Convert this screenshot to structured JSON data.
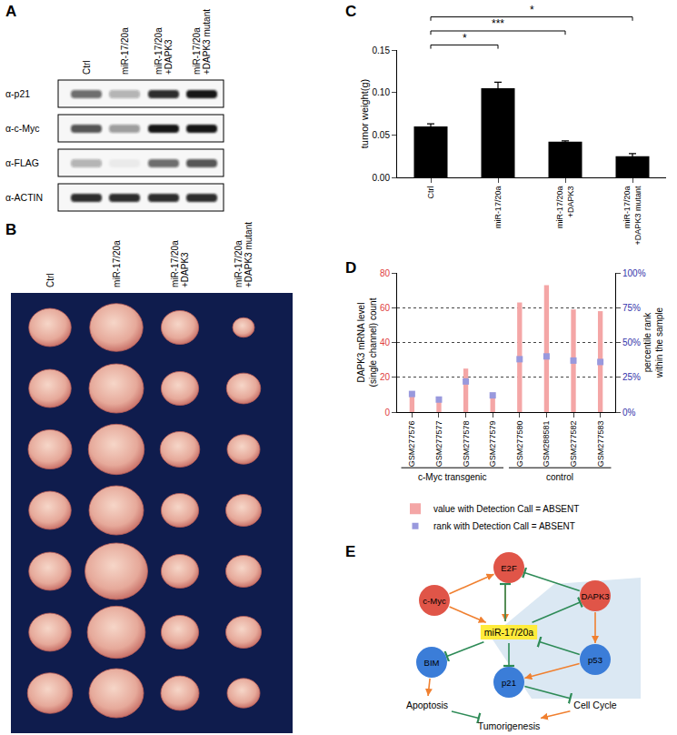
{
  "panel_labels": [
    "A",
    "B",
    "C",
    "D",
    "E"
  ],
  "blot": {
    "lanes": [
      "Ctrl",
      "miR-17/20a",
      "miR-17/20a +DAPK3",
      "miR-17/20a +DAPK3 mutant"
    ],
    "rows": [
      {
        "label": "α-p21",
        "intensity": [
          0.6,
          0.3,
          0.9,
          1.0
        ]
      },
      {
        "label": "α-c-Myc",
        "intensity": [
          0.7,
          0.4,
          1.0,
          1.0
        ]
      },
      {
        "label": "α-FLAG",
        "intensity": [
          0.3,
          0.05,
          0.6,
          0.7
        ]
      },
      {
        "label": "α-ACTIN",
        "intensity": [
          0.9,
          0.9,
          0.9,
          0.9
        ]
      }
    ]
  },
  "photos": {
    "groups": [
      {
        "label": "Ctrl",
        "relative_size": [
          0.62,
          0.62,
          0.64,
          0.62,
          0.62,
          0.62,
          0.66
        ]
      },
      {
        "label": "miR-17/20a",
        "relative_size": [
          0.78,
          0.8,
          0.82,
          0.8,
          0.92,
          0.85,
          0.8
        ]
      },
      {
        "label": "miR-17/20a +DAPK3",
        "relative_size": [
          0.55,
          0.55,
          0.58,
          0.55,
          0.55,
          0.55,
          0.56
        ]
      },
      {
        "label": "miR-17/20a +DAPK3 mutant",
        "relative_size": [
          0.32,
          0.5,
          0.48,
          0.52,
          0.52,
          0.52,
          0.48
        ]
      }
    ]
  },
  "chart_data": [
    {
      "type": "bar",
      "categories": [
        "Ctrl",
        "miR-17/20a",
        "miR-17/20a +DAPK3",
        "miR-17/20a +DAPK3 mutant"
      ],
      "values": [
        0.06,
        0.105,
        0.042,
        0.025
      ],
      "errors": [
        0.003,
        0.007,
        0.001,
        0.003
      ],
      "color": "#000000",
      "ylabel": "tumor weight(g)",
      "ylim": [
        0,
        0.15
      ],
      "yticks": [
        {
          "value": 0,
          "label": "0.00"
        },
        0.05,
        {
          "value": 0.1,
          "label": "0.10"
        },
        0.15
      ],
      "grid": false,
      "annotations": [
        {
          "from": 0,
          "to": 1,
          "label": "*"
        },
        {
          "from": 0,
          "to": 2,
          "label": "***"
        },
        {
          "from": 0,
          "to": 3,
          "label": "*"
        }
      ]
    },
    {
      "type": "bar",
      "categories": [
        "GSM277576",
        "GSM277577",
        "GSM277578",
        "GSM277579",
        "GSM277580",
        "GSM288581",
        "GSM277582",
        "GSM277583"
      ],
      "series": [
        {
          "name": "value with Detection Call = ABSENT",
          "color": "#f4a6a6",
          "values": [
            9,
            6,
            25,
            9,
            63,
            73,
            59,
            58
          ]
        },
        {
          "name": "rank with Detection Call = ABSENT",
          "color": "#9999dd",
          "values": [
            13,
            9,
            22,
            12,
            38,
            40,
            37,
            36
          ],
          "axis": "y2",
          "type": "scatter",
          "marker": "square"
        }
      ],
      "ylabel": [
        "DAPK3 mRNA level",
        "(single channel) count"
      ],
      "y2label": [
        "percentile rank",
        "within the sample"
      ],
      "ylim": [
        0,
        80
      ],
      "yticks": [
        0,
        20,
        40,
        60,
        80
      ],
      "y2lim": [
        0,
        100
      ],
      "y2ticks": [
        {
          "value": 0,
          "label": "0%"
        },
        {
          "value": 25,
          "label": "25%"
        },
        {
          "value": 50,
          "label": "50%"
        },
        {
          "value": 75,
          "label": "75%"
        },
        {
          "value": 100,
          "label": "100%"
        }
      ],
      "grid": true,
      "legend": "bottom",
      "groups": [
        {
          "label": "c-Myc transgenic",
          "from": 0,
          "to": 3
        },
        {
          "label": "control",
          "from": 4,
          "to": 7
        }
      ]
    }
  ],
  "diagram": {
    "nodes": [
      {
        "label": "E2F",
        "shape": "circle",
        "color": "#e05548"
      },
      {
        "label": "c-Myc",
        "shape": "circle",
        "color": "#e05548"
      },
      {
        "label": "DAPK3",
        "shape": "circle",
        "color": "#e05548"
      },
      {
        "label": "miR-17/20a",
        "shape": "box",
        "color": "#ffeb3b"
      },
      {
        "label": "BIM",
        "shape": "circle",
        "color": "#3b7dd8"
      },
      {
        "label": "p53",
        "shape": "circle",
        "color": "#3b7dd8"
      },
      {
        "label": "p21",
        "shape": "circle",
        "color": "#3b7dd8"
      },
      {
        "label": "Apoptosis",
        "shape": "text"
      },
      {
        "label": "Cell Cycle",
        "shape": "text"
      },
      {
        "label": "Tumorigenesis",
        "shape": "text"
      }
    ],
    "edges": [
      {
        "from": 1,
        "to": 0,
        "type": "activation"
      },
      {
        "from": 0,
        "to": 3,
        "type": "activation"
      },
      {
        "from": 1,
        "to": 3,
        "type": "activation"
      },
      {
        "from": 3,
        "to": 0,
        "type": "inhibition"
      },
      {
        "from": 3,
        "to": 2,
        "type": "inhibition"
      },
      {
        "from": 2,
        "to": 0,
        "type": "inhibition"
      },
      {
        "from": 2,
        "to": 5,
        "type": "activation"
      },
      {
        "from": 5,
        "to": 3,
        "type": "inhibition"
      },
      {
        "from": 5,
        "to": 6,
        "type": "activation"
      },
      {
        "from": 3,
        "to": 6,
        "type": "inhibition"
      },
      {
        "from": 3,
        "to": 4,
        "type": "inhibition"
      },
      {
        "from": 4,
        "to": 7,
        "type": "activation"
      },
      {
        "from": 6,
        "to": 8,
        "type": "inhibition"
      },
      {
        "from": 7,
        "to": 9,
        "type": "inhibition"
      },
      {
        "from": 8,
        "to": 9,
        "type": "activation"
      }
    ]
  }
}
